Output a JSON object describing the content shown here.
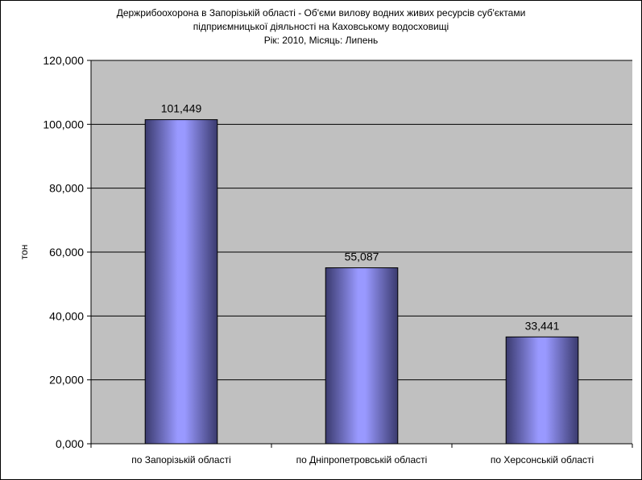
{
  "chart_data": {
    "type": "bar",
    "title_lines": [
      "Держрибоохорона в Запорізькій області - Об'єми вилову водних живих ресурсів суб'єктами",
      "підприємницької діяльності на Каховському водосховищі",
      "Рік: 2010, Місяць: Липень"
    ],
    "ylabel": "тон",
    "xlabel": "",
    "categories": [
      "по Запорізькій області",
      "по Дніпропетровській області",
      "по Херсонській області"
    ],
    "values": [
      101449,
      55087,
      33441
    ],
    "data_labels": [
      "101,449",
      "55,087",
      "33,441"
    ],
    "ylim": [
      0,
      120000
    ],
    "y_ticks": [
      0,
      20000,
      40000,
      60000,
      80000,
      100000,
      120000
    ],
    "y_tick_labels": [
      "0,000",
      "20,000",
      "40,000",
      "60,000",
      "80,000",
      "100,000",
      "120,000"
    ],
    "grid": true,
    "legend": "none",
    "colors": {
      "plot_background": "#c0c0c0",
      "bar_light": "#9999ff",
      "bar_dark": "#3a3a6e",
      "gridline": "#000000"
    }
  }
}
